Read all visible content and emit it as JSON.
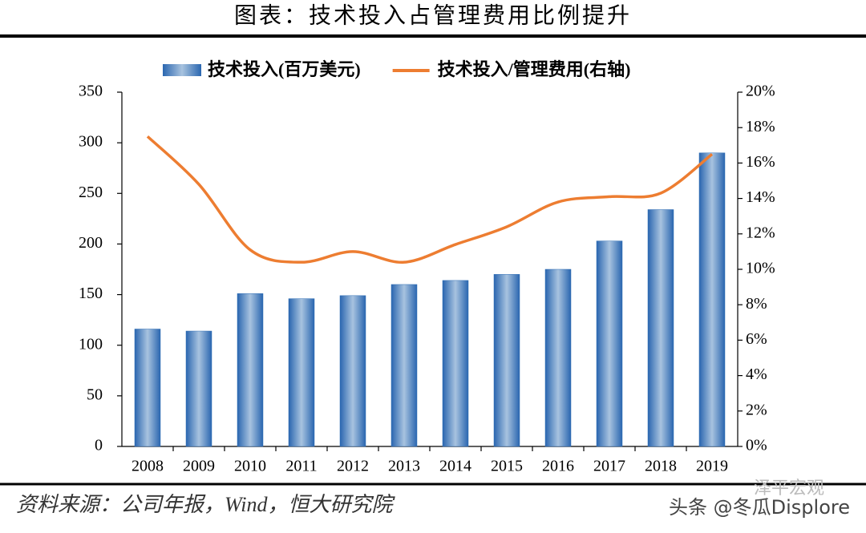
{
  "title": "图表：技术投入占管理费用比例提升",
  "source": "资料来源：公司年报，Wind，恒大研究院",
  "watermark": {
    "brand": "泽平宏观",
    "credit": "头条 @冬瓜Displore"
  },
  "chart_data": {
    "type": "combo",
    "categories": [
      "2008",
      "2009",
      "2010",
      "2011",
      "2012",
      "2013",
      "2014",
      "2015",
      "2016",
      "2017",
      "2018",
      "2019"
    ],
    "series": [
      {
        "name": "技术投入(百万美元)",
        "type": "bar",
        "color": "#2e6db4",
        "values": [
          116,
          114,
          151,
          146,
          149,
          160,
          164,
          170,
          175,
          203,
          234,
          290
        ]
      },
      {
        "name": "技术投入/管理费用(右轴)",
        "type": "line",
        "axis": "y2",
        "color": "#ed7d31",
        "values": [
          17.5,
          14.8,
          11.1,
          10.4,
          11.0,
          10.4,
          11.4,
          12.4,
          13.8,
          14.1,
          14.3,
          16.5
        ]
      }
    ],
    "ylim": [
      0,
      350
    ],
    "yticks": [
      0,
      50,
      100,
      150,
      200,
      250,
      300,
      350
    ],
    "y2lim": [
      0,
      20
    ],
    "y2ticks": [
      {
        "value": 0,
        "label": "0%"
      },
      {
        "value": 2,
        "label": "2%"
      },
      {
        "value": 4,
        "label": "4%"
      },
      {
        "value": 6,
        "label": "6%"
      },
      {
        "value": 8,
        "label": "8%"
      },
      {
        "value": 10,
        "label": "10%"
      },
      {
        "value": 12,
        "label": "12%"
      },
      {
        "value": 14,
        "label": "14%"
      },
      {
        "value": 16,
        "label": "16%"
      },
      {
        "value": 18,
        "label": "18%"
      },
      {
        "value": 20,
        "label": "20%"
      }
    ],
    "legend": "top"
  }
}
